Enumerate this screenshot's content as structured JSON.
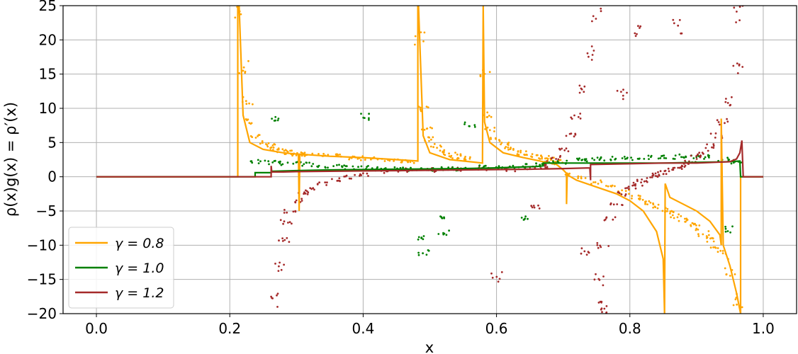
{
  "chart_data": {
    "type": "line",
    "title": "",
    "xlabel": "x",
    "ylabel": "ρ(x)g(x) = ρ′(x)",
    "xlim": [
      -0.05,
      1.05
    ],
    "ylim": [
      -20,
      25
    ],
    "xticks": [
      0.0,
      0.2,
      0.4,
      0.6,
      0.8,
      1.0
    ],
    "xtick_labels": [
      "0.0",
      "0.2",
      "0.4",
      "0.6",
      "0.8",
      "1.0"
    ],
    "yticks": [
      -20,
      -15,
      -10,
      -5,
      0,
      5,
      10,
      15,
      20,
      25
    ],
    "ytick_labels": [
      "−20",
      "−15",
      "−10",
      "−5",
      "0",
      "5",
      "10",
      "15",
      "20",
      "25"
    ],
    "grid": true,
    "legend_position": "lower-left",
    "series": [
      {
        "name": "γ = 0.8",
        "color": "#ffa500",
        "line": {
          "x": [
            0.0,
            0.212,
            0.212,
            0.214,
            0.22,
            0.23,
            0.25,
            0.28,
            0.303,
            0.304,
            0.304,
            0.305,
            0.35,
            0.4,
            0.45,
            0.482,
            0.482,
            0.483,
            0.49,
            0.5,
            0.53,
            0.56,
            0.579,
            0.58,
            0.58,
            0.582,
            0.59,
            0.61,
            0.64,
            0.67,
            0.69,
            0.7,
            0.705,
            0.705,
            0.706,
            0.72,
            0.75,
            0.78,
            0.8,
            0.82,
            0.84,
            0.85,
            0.852,
            0.853,
            0.86,
            0.88,
            0.9,
            0.92,
            0.935,
            0.937,
            0.937,
            0.94,
            0.95,
            0.96,
            0.966,
            0.966,
            0.968,
            0.97,
            1.0
          ],
          "y": [
            0,
            0,
            25,
            25,
            9,
            5,
            4,
            3.5,
            3.3,
            -5,
            -5,
            3.3,
            3,
            2.8,
            2.5,
            2.3,
            25,
            25,
            6,
            3.5,
            2.5,
            2.2,
            2,
            25,
            25,
            8,
            5,
            3.5,
            2.8,
            2.2,
            1.8,
            1,
            0.5,
            -4,
            0.3,
            -0.5,
            -1.5,
            -2.5,
            -3.5,
            -5,
            -8,
            -12,
            -20,
            -1,
            -3,
            -4,
            -5,
            -6.5,
            -8.5,
            -10,
            8.5,
            -10,
            -13,
            -17,
            -20,
            0,
            0,
            0,
            0
          ]
        },
        "scatter": {
          "x": [
            0.215,
            0.22,
            0.226,
            0.232,
            0.24,
            0.25,
            0.26,
            0.27,
            0.28,
            0.29,
            0.3,
            0.31,
            0.32,
            0.34,
            0.36,
            0.38,
            0.4,
            0.42,
            0.44,
            0.46,
            0.47,
            0.485,
            0.49,
            0.495,
            0.5,
            0.51,
            0.52,
            0.53,
            0.54,
            0.55,
            0.56,
            0.583,
            0.587,
            0.592,
            0.6,
            0.61,
            0.62,
            0.63,
            0.64,
            0.65,
            0.66,
            0.67,
            0.68,
            0.69,
            0.71,
            0.73,
            0.75,
            0.77,
            0.79,
            0.81,
            0.82,
            0.83,
            0.84,
            0.855,
            0.86,
            0.87,
            0.88,
            0.89,
            0.9,
            0.91,
            0.92,
            0.93,
            0.94,
            0.95,
            0.96
          ],
          "y": [
            24,
            16,
            11,
            8,
            6,
            5,
            4.5,
            4,
            3.8,
            3.6,
            3.4,
            3.3,
            3.3,
            3.1,
            3,
            2.8,
            2.7,
            2.6,
            2.5,
            2.4,
            2.3,
            20,
            10,
            7,
            5.5,
            4.5,
            3.8,
            3.3,
            3,
            2.8,
            2.6,
            15,
            9,
            7,
            5.5,
            4.8,
            4.2,
            3.8,
            3.5,
            3.2,
            3,
            2.8,
            2.5,
            2.3,
            0.5,
            0,
            -0.8,
            -1.5,
            -2.2,
            -3,
            -3.4,
            -3.8,
            -4.3,
            -4.8,
            -5.3,
            -5.8,
            -6.3,
            -6.8,
            -7.5,
            -8.2,
            -9,
            -10,
            -11.5,
            -14,
            -18
          ]
        }
      },
      {
        "name": "γ = 1.0",
        "color": "#008000",
        "line": {
          "x": [
            0.0,
            0.238,
            0.238,
            0.262,
            0.262,
            0.3,
            0.35,
            0.4,
            0.45,
            0.5,
            0.55,
            0.6,
            0.63,
            0.66,
            0.67,
            0.67,
            0.7,
            0.73,
            0.76,
            0.8,
            0.85,
            0.9,
            0.95,
            0.965,
            0.966,
            1.0
          ],
          "y": [
            0,
            0,
            0.6,
            0.6,
            0.8,
            0.9,
            1.0,
            1.05,
            1.1,
            1.15,
            1.2,
            1.3,
            1.4,
            1.5,
            1.6,
            2.0,
            2.0,
            2.0,
            2.0,
            2.0,
            2.0,
            2.1,
            2.2,
            2.3,
            0,
            0
          ]
        },
        "scatter": {
          "x": [
            0.24,
            0.26,
            0.28,
            0.3,
            0.32,
            0.34,
            0.36,
            0.38,
            0.4,
            0.42,
            0.44,
            0.46,
            0.48,
            0.5,
            0.52,
            0.54,
            0.56,
            0.58,
            0.6,
            0.62,
            0.64,
            0.66,
            0.68,
            0.7,
            0.72,
            0.74,
            0.76,
            0.78,
            0.8,
            0.82,
            0.84,
            0.86,
            0.88,
            0.9,
            0.92,
            0.94,
            0.96,
            0.27,
            0.403,
            0.49,
            0.49,
            0.52,
            0.52,
            0.559,
            0.64,
            0.95
          ],
          "y": [
            2.2,
            2.1,
            2.0,
            1.9,
            1.8,
            1.6,
            1.5,
            1.4,
            1.3,
            1.2,
            1.2,
            1.1,
            1.1,
            1.1,
            1.2,
            1.2,
            1.3,
            1.4,
            1.4,
            1.5,
            1.6,
            1.8,
            2.0,
            2.2,
            2.4,
            2.5,
            2.6,
            2.7,
            2.7,
            2.8,
            2.9,
            2.9,
            3.0,
            3.0,
            2.9,
            2.6,
            2.2,
            8.5,
            8.7,
            -9,
            -11,
            -5.8,
            -8.3,
            7.6,
            -6,
            -7.7
          ]
        }
      },
      {
        "name": "γ = 1.2",
        "color": "#a52a2a",
        "line": {
          "x": [
            0.0,
            0.262,
            0.262,
            0.263,
            0.28,
            0.3,
            0.35,
            0.4,
            0.45,
            0.5,
            0.55,
            0.6,
            0.65,
            0.7,
            0.74,
            0.741,
            0.741,
            0.745,
            0.8,
            0.85,
            0.9,
            0.95,
            0.96,
            0.965,
            0.968,
            0.97,
            0.971,
            1.0
          ],
          "y": [
            0,
            0,
            1.6,
            0.7,
            0.7,
            0.75,
            0.8,
            0.85,
            0.9,
            0.95,
            1.0,
            1.05,
            1.1,
            1.2,
            1.3,
            -0.5,
            1.8,
            1.8,
            1.9,
            2.0,
            2.0,
            2.2,
            2.6,
            3.5,
            5.3,
            0,
            0,
            0
          ]
        },
        "scatter": {
          "x": [
            0.27,
            0.275,
            0.28,
            0.285,
            0.29,
            0.3,
            0.31,
            0.32,
            0.34,
            0.36,
            0.38,
            0.4,
            0.43,
            0.46,
            0.5,
            0.54,
            0.58,
            0.62,
            0.65,
            0.67,
            0.68,
            0.69,
            0.7,
            0.71,
            0.72,
            0.73,
            0.74,
            0.75,
            0.76,
            0.765,
            0.752,
            0.755,
            0.76,
            0.77,
            0.78,
            0.79,
            0.8,
            0.81,
            0.82,
            0.83,
            0.84,
            0.85,
            0.86,
            0.87,
            0.88,
            0.89,
            0.9,
            0.91,
            0.92,
            0.93,
            0.94,
            0.95,
            0.96,
            0.965,
            0.814,
            0.872,
            0.79,
            0.73,
            0.66,
            0.6
          ],
          "y": [
            -18,
            -13,
            -9,
            -6.5,
            -5,
            -3.5,
            -2.5,
            -1.8,
            -1,
            -0.5,
            0,
            0.4,
            0.8,
            1,
            1,
            1,
            1.1,
            1.1,
            1.2,
            1.5,
            2,
            2.8,
            4,
            6,
            9,
            13,
            18,
            24,
            -21,
            -20,
            -19,
            -15,
            -10,
            -6,
            -4,
            -2.5,
            -1.5,
            -1,
            -0.5,
            0,
            0.3,
            0.6,
            1,
            1.3,
            1.7,
            2.2,
            2.8,
            3.5,
            4.5,
            6,
            8,
            11,
            16,
            24,
            21,
            21.7,
            12,
            -11,
            -4.5,
            -14.5
          ]
        }
      }
    ]
  }
}
